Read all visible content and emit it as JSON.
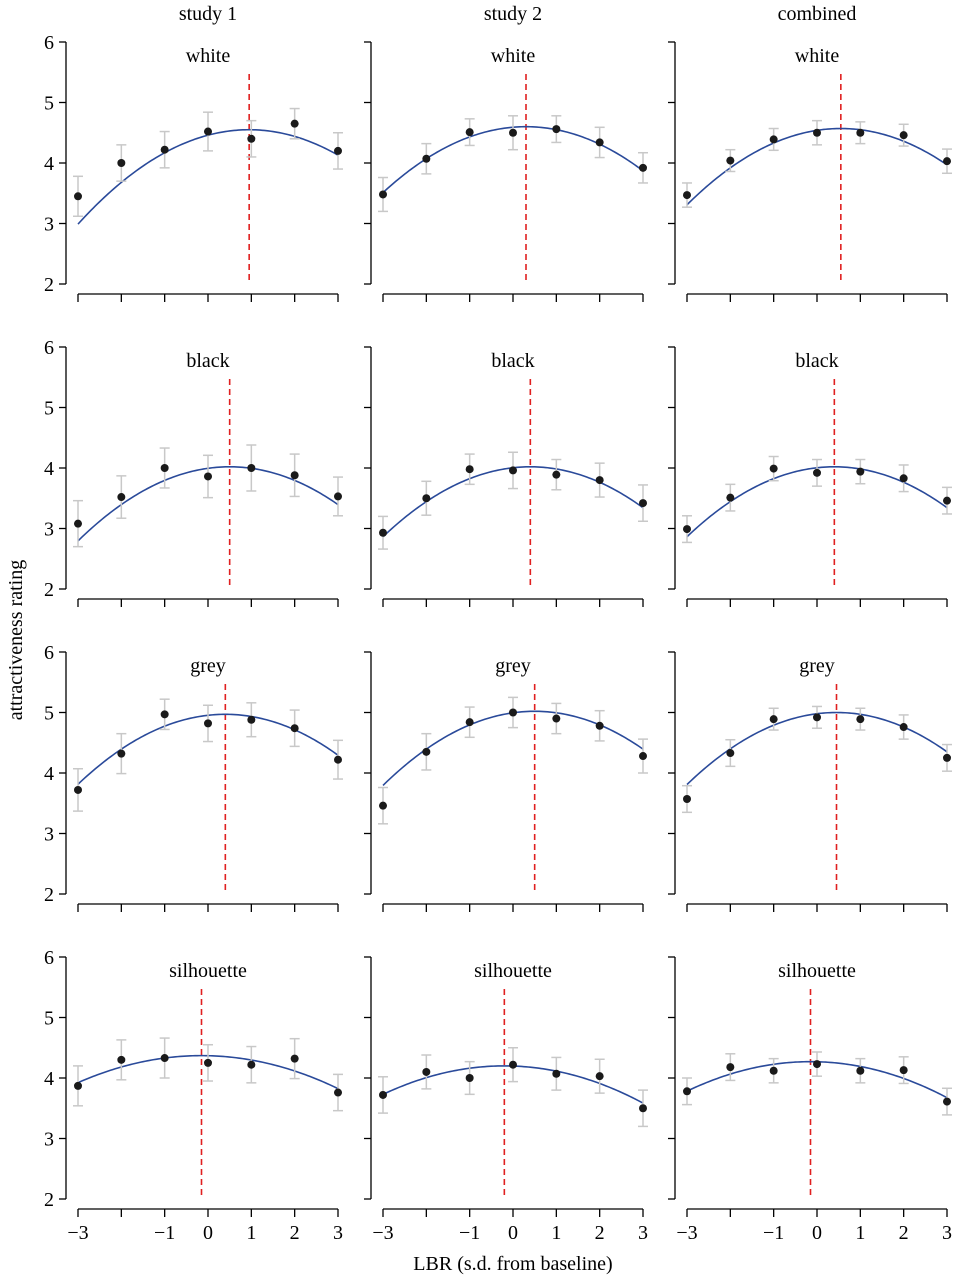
{
  "figure": {
    "y_axis_label": "attractiveness rating",
    "x_axis_label": "LBR (s.d. from baseline)",
    "column_titles": [
      "study 1",
      "study 2",
      "combined"
    ],
    "row_titles": [
      "white",
      "black",
      "grey",
      "silhouette"
    ],
    "x_tick_labels": [
      "−3",
      "−1",
      "0",
      "1",
      "2",
      "3"
    ],
    "y_tick_labels": [
      "2",
      "3",
      "4",
      "5",
      "6"
    ]
  },
  "colors": {
    "fit_curve": "#2a4a9a",
    "peak_line": "#e02020",
    "points": "#1a1a1a",
    "error_bars": "#c8c8c8",
    "axes": "#000000"
  },
  "chart_data": [
    {
      "type": "scatter",
      "row": "white",
      "column": "study 1",
      "x": [
        -3,
        -2,
        -1,
        0,
        1,
        2,
        3
      ],
      "y": [
        3.45,
        4.0,
        4.22,
        4.52,
        4.4,
        4.65,
        4.2
      ],
      "err": [
        0.33,
        0.3,
        0.3,
        0.32,
        0.3,
        0.25,
        0.3
      ],
      "fit_peak_x": 0.95,
      "fit_peak_y": 4.55,
      "fit_a": -0.1,
      "xlim": [
        -3,
        3
      ],
      "ylim": [
        2,
        6
      ]
    },
    {
      "type": "scatter",
      "row": "white",
      "column": "study 2",
      "x": [
        -3,
        -2,
        -1,
        0,
        1,
        2,
        3
      ],
      "y": [
        3.48,
        4.07,
        4.51,
        4.5,
        4.56,
        4.34,
        3.92
      ],
      "err": [
        0.28,
        0.25,
        0.22,
        0.28,
        0.22,
        0.25,
        0.25
      ],
      "fit_peak_x": 0.3,
      "fit_peak_y": 4.6,
      "fit_a": -0.1,
      "xlim": [
        -3,
        3
      ],
      "ylim": [
        2,
        6
      ]
    },
    {
      "type": "scatter",
      "row": "white",
      "column": "combined",
      "x": [
        -3,
        -2,
        -1,
        0,
        1,
        2,
        3
      ],
      "y": [
        3.47,
        4.04,
        4.39,
        4.5,
        4.5,
        4.46,
        4.03
      ],
      "err": [
        0.2,
        0.18,
        0.18,
        0.2,
        0.18,
        0.18,
        0.2
      ],
      "fit_peak_x": 0.55,
      "fit_peak_y": 4.57,
      "fit_a": -0.1,
      "xlim": [
        -3,
        3
      ],
      "ylim": [
        2,
        6
      ]
    },
    {
      "type": "scatter",
      "row": "black",
      "column": "study 1",
      "x": [
        -3,
        -2,
        -1,
        0,
        1,
        2,
        3
      ],
      "y": [
        3.08,
        3.52,
        4.0,
        3.86,
        4.0,
        3.88,
        3.53
      ],
      "err": [
        0.38,
        0.35,
        0.33,
        0.35,
        0.38,
        0.35,
        0.32
      ],
      "fit_peak_x": 0.5,
      "fit_peak_y": 4.02,
      "fit_a": -0.1,
      "xlim": [
        -3,
        3
      ],
      "ylim": [
        2,
        6
      ]
    },
    {
      "type": "scatter",
      "row": "black",
      "column": "study 2",
      "x": [
        -3,
        -2,
        -1,
        0,
        1,
        2,
        3
      ],
      "y": [
        2.93,
        3.5,
        3.98,
        3.96,
        3.89,
        3.8,
        3.42
      ],
      "err": [
        0.27,
        0.28,
        0.25,
        0.3,
        0.25,
        0.28,
        0.3
      ],
      "fit_peak_x": 0.4,
      "fit_peak_y": 4.02,
      "fit_a": -0.1,
      "xlim": [
        -3,
        3
      ],
      "ylim": [
        2,
        6
      ]
    },
    {
      "type": "scatter",
      "row": "black",
      "column": "combined",
      "x": [
        -3,
        -2,
        -1,
        0,
        1,
        2,
        3
      ],
      "y": [
        2.99,
        3.51,
        3.99,
        3.92,
        3.94,
        3.83,
        3.46
      ],
      "err": [
        0.22,
        0.22,
        0.2,
        0.22,
        0.2,
        0.22,
        0.22
      ],
      "fit_peak_x": 0.4,
      "fit_peak_y": 4.02,
      "fit_a": -0.1,
      "xlim": [
        -3,
        3
      ],
      "ylim": [
        2,
        6
      ]
    },
    {
      "type": "scatter",
      "row": "grey",
      "column": "study 1",
      "x": [
        -3,
        -2,
        -1,
        0,
        1,
        2,
        3
      ],
      "y": [
        3.72,
        4.32,
        4.97,
        4.82,
        4.88,
        4.74,
        4.22
      ],
      "err": [
        0.35,
        0.33,
        0.25,
        0.3,
        0.28,
        0.3,
        0.32
      ],
      "fit_peak_x": 0.4,
      "fit_peak_y": 4.97,
      "fit_a": -0.1,
      "xlim": [
        -3,
        3
      ],
      "ylim": [
        2,
        6
      ]
    },
    {
      "type": "scatter",
      "row": "grey",
      "column": "study 2",
      "x": [
        -3,
        -2,
        -1,
        0,
        1,
        2,
        3
      ],
      "y": [
        3.46,
        4.35,
        4.84,
        5.0,
        4.9,
        4.78,
        4.28
      ],
      "err": [
        0.3,
        0.3,
        0.25,
        0.25,
        0.25,
        0.25,
        0.28
      ],
      "fit_peak_x": 0.5,
      "fit_peak_y": 5.02,
      "fit_a": -0.1,
      "xlim": [
        -3,
        3
      ],
      "ylim": [
        2,
        6
      ]
    },
    {
      "type": "scatter",
      "row": "grey",
      "column": "combined",
      "x": [
        -3,
        -2,
        -1,
        0,
        1,
        2,
        3
      ],
      "y": [
        3.57,
        4.33,
        4.89,
        4.92,
        4.89,
        4.76,
        4.25
      ],
      "err": [
        0.22,
        0.22,
        0.18,
        0.18,
        0.18,
        0.2,
        0.22
      ],
      "fit_peak_x": 0.45,
      "fit_peak_y": 5.0,
      "fit_a": -0.1,
      "xlim": [
        -3,
        3
      ],
      "ylim": [
        2,
        6
      ]
    },
    {
      "type": "scatter",
      "row": "silhouette",
      "column": "study 1",
      "x": [
        -3,
        -2,
        -1,
        0,
        1,
        2,
        3
      ],
      "y": [
        3.87,
        4.3,
        4.33,
        4.25,
        4.22,
        4.32,
        3.76
      ],
      "err": [
        0.33,
        0.33,
        0.33,
        0.3,
        0.3,
        0.33,
        0.3
      ],
      "fit_peak_x": -0.15,
      "fit_peak_y": 4.37,
      "fit_a": -0.055,
      "xlim": [
        -3,
        3
      ],
      "ylim": [
        2,
        6
      ]
    },
    {
      "type": "scatter",
      "row": "silhouette",
      "column": "study 2",
      "x": [
        -3,
        -2,
        -1,
        0,
        1,
        2,
        3
      ],
      "y": [
        3.72,
        4.1,
        4.0,
        4.22,
        4.07,
        4.03,
        3.5
      ],
      "err": [
        0.3,
        0.28,
        0.27,
        0.28,
        0.27,
        0.28,
        0.3
      ],
      "fit_peak_x": -0.2,
      "fit_peak_y": 4.2,
      "fit_a": -0.06,
      "xlim": [
        -3,
        3
      ],
      "ylim": [
        2,
        6
      ]
    },
    {
      "type": "scatter",
      "row": "silhouette",
      "column": "combined",
      "x": [
        -3,
        -2,
        -1,
        0,
        1,
        2,
        3
      ],
      "y": [
        3.78,
        4.18,
        4.12,
        4.23,
        4.12,
        4.13,
        3.61
      ],
      "err": [
        0.22,
        0.22,
        0.2,
        0.2,
        0.2,
        0.22,
        0.22
      ],
      "fit_peak_x": -0.15,
      "fit_peak_y": 4.27,
      "fit_a": -0.06,
      "xlim": [
        -3,
        3
      ],
      "ylim": [
        2,
        6
      ]
    }
  ]
}
